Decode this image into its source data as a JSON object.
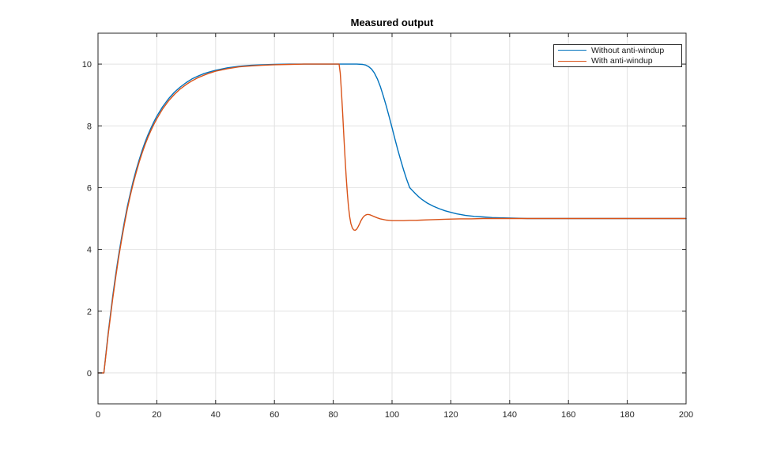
{
  "figure": {
    "title": "Measured output"
  },
  "legend": {
    "position": "top-right",
    "border_color": "#262626",
    "text_color": "#1a1a1a",
    "items": [
      {
        "label": "Without anti-windup",
        "color": "#0072BD"
      },
      {
        "label": "With anti-windup",
        "color": "#D95319"
      }
    ]
  },
  "colors": {
    "background": "#FFFFFF",
    "axis": "#262626",
    "grid": "#E2E2E2",
    "tick_label": "#262626",
    "title": "#000000",
    "series_blue": "#0072BD",
    "series_orange": "#D95319"
  },
  "chart_data": {
    "type": "line",
    "title": "Measured output",
    "xlabel": "",
    "ylabel": "",
    "xlim": [
      0,
      200
    ],
    "ylim": [
      -1,
      11
    ],
    "xticks": [
      0,
      20,
      40,
      60,
      80,
      100,
      120,
      140,
      160,
      180,
      200
    ],
    "yticks": [
      0,
      2,
      4,
      6,
      8,
      10
    ],
    "grid": true,
    "legend_position": "top-right",
    "series": [
      {
        "name": "Without anti-windup",
        "color": "#0072BD",
        "points": [
          [
            0,
            0
          ],
          [
            2,
            0
          ],
          [
            2.5,
            0.45
          ],
          [
            3,
            0.9
          ],
          [
            3.5,
            1.32
          ],
          [
            4,
            1.72
          ],
          [
            5,
            2.48
          ],
          [
            6,
            3.17
          ],
          [
            7,
            3.8
          ],
          [
            8,
            4.38
          ],
          [
            9,
            4.91
          ],
          [
            10,
            5.4
          ],
          [
            11,
            5.82
          ],
          [
            12,
            6.22
          ],
          [
            13,
            6.58
          ],
          [
            14,
            6.9
          ],
          [
            15,
            7.2
          ],
          [
            16,
            7.47
          ],
          [
            17,
            7.71
          ],
          [
            18,
            7.93
          ],
          [
            19,
            8.13
          ],
          [
            20,
            8.31
          ],
          [
            22,
            8.62
          ],
          [
            24,
            8.88
          ],
          [
            26,
            9.09
          ],
          [
            28,
            9.26
          ],
          [
            30,
            9.4
          ],
          [
            32,
            9.52
          ],
          [
            34,
            9.61
          ],
          [
            36,
            9.69
          ],
          [
            38,
            9.75
          ],
          [
            40,
            9.8
          ],
          [
            44,
            9.88
          ],
          [
            48,
            9.93
          ],
          [
            52,
            9.96
          ],
          [
            56,
            9.98
          ],
          [
            60,
            9.99
          ],
          [
            65,
            10
          ],
          [
            88,
            10
          ],
          [
            90,
            9.99
          ],
          [
            91,
            9.97
          ],
          [
            92,
            9.92
          ],
          [
            93,
            9.84
          ],
          [
            94,
            9.71
          ],
          [
            95,
            9.52
          ],
          [
            96,
            9.28
          ],
          [
            97,
            8.98
          ],
          [
            98,
            8.65
          ],
          [
            99,
            8.3
          ],
          [
            100,
            7.94
          ],
          [
            101,
            7.57
          ],
          [
            102,
            7.21
          ],
          [
            103,
            6.87
          ],
          [
            104,
            6.55
          ],
          [
            105,
            6.26
          ],
          [
            106,
            6.0
          ],
          [
            107,
            5.9
          ],
          [
            108,
            5.8
          ],
          [
            109,
            5.71
          ],
          [
            110,
            5.63
          ],
          [
            112,
            5.5
          ],
          [
            114,
            5.4
          ],
          [
            116,
            5.32
          ],
          [
            118,
            5.25
          ],
          [
            120,
            5.2
          ],
          [
            122,
            5.15
          ],
          [
            125,
            5.1
          ],
          [
            128,
            5.07
          ],
          [
            131,
            5.05
          ],
          [
            134,
            5.03
          ],
          [
            138,
            5.02
          ],
          [
            142,
            5.01
          ],
          [
            146,
            5.0
          ],
          [
            160,
            5.0
          ],
          [
            180,
            5.0
          ],
          [
            200,
            5.0
          ]
        ]
      },
      {
        "name": "With anti-windup",
        "color": "#D95319",
        "points": [
          [
            0,
            0
          ],
          [
            2,
            0
          ],
          [
            2.5,
            0.42
          ],
          [
            3,
            0.85
          ],
          [
            3.5,
            1.27
          ],
          [
            4,
            1.65
          ],
          [
            5,
            2.4
          ],
          [
            6,
            3.08
          ],
          [
            7,
            3.72
          ],
          [
            8,
            4.3
          ],
          [
            9,
            4.83
          ],
          [
            10,
            5.32
          ],
          [
            11,
            5.75
          ],
          [
            12,
            6.14
          ],
          [
            13,
            6.5
          ],
          [
            14,
            6.83
          ],
          [
            15,
            7.12
          ],
          [
            16,
            7.39
          ],
          [
            17,
            7.63
          ],
          [
            18,
            7.85
          ],
          [
            19,
            8.05
          ],
          [
            20,
            8.23
          ],
          [
            22,
            8.55
          ],
          [
            24,
            8.81
          ],
          [
            26,
            9.02
          ],
          [
            28,
            9.2
          ],
          [
            30,
            9.34
          ],
          [
            32,
            9.46
          ],
          [
            34,
            9.56
          ],
          [
            36,
            9.64
          ],
          [
            38,
            9.71
          ],
          [
            40,
            9.77
          ],
          [
            44,
            9.85
          ],
          [
            48,
            9.91
          ],
          [
            52,
            9.94
          ],
          [
            56,
            9.96
          ],
          [
            60,
            9.98
          ],
          [
            65,
            9.99
          ],
          [
            70,
            10
          ],
          [
            82,
            10
          ],
          [
            82.4,
            9.7
          ],
          [
            82.8,
            9.1
          ],
          [
            83.2,
            8.42
          ],
          [
            83.6,
            7.68
          ],
          [
            84,
            6.98
          ],
          [
            84.4,
            6.34
          ],
          [
            84.8,
            5.8
          ],
          [
            85.2,
            5.38
          ],
          [
            85.6,
            5.06
          ],
          [
            86,
            4.84
          ],
          [
            86.5,
            4.69
          ],
          [
            87,
            4.63
          ],
          [
            87.5,
            4.62
          ],
          [
            88,
            4.66
          ],
          [
            88.5,
            4.74
          ],
          [
            89,
            4.84
          ],
          [
            89.5,
            4.94
          ],
          [
            90,
            5.02
          ],
          [
            90.5,
            5.08
          ],
          [
            91,
            5.11
          ],
          [
            91.5,
            5.13
          ],
          [
            92,
            5.13
          ],
          [
            92.5,
            5.12
          ],
          [
            93,
            5.1
          ],
          [
            94,
            5.06
          ],
          [
            95,
            5.02
          ],
          [
            96,
            4.99
          ],
          [
            97,
            4.97
          ],
          [
            98,
            4.95
          ],
          [
            99,
            4.94
          ],
          [
            100,
            4.93
          ],
          [
            102,
            4.93
          ],
          [
            104,
            4.93
          ],
          [
            106,
            4.94
          ],
          [
            108,
            4.94
          ],
          [
            110,
            4.95
          ],
          [
            113,
            4.96
          ],
          [
            116,
            4.97
          ],
          [
            119,
            4.98
          ],
          [
            123,
            4.99
          ],
          [
            127,
            4.99
          ],
          [
            131,
            5.0
          ],
          [
            140,
            5.0
          ],
          [
            160,
            5.0
          ],
          [
            180,
            5.0
          ],
          [
            200,
            5.0
          ]
        ]
      }
    ]
  }
}
